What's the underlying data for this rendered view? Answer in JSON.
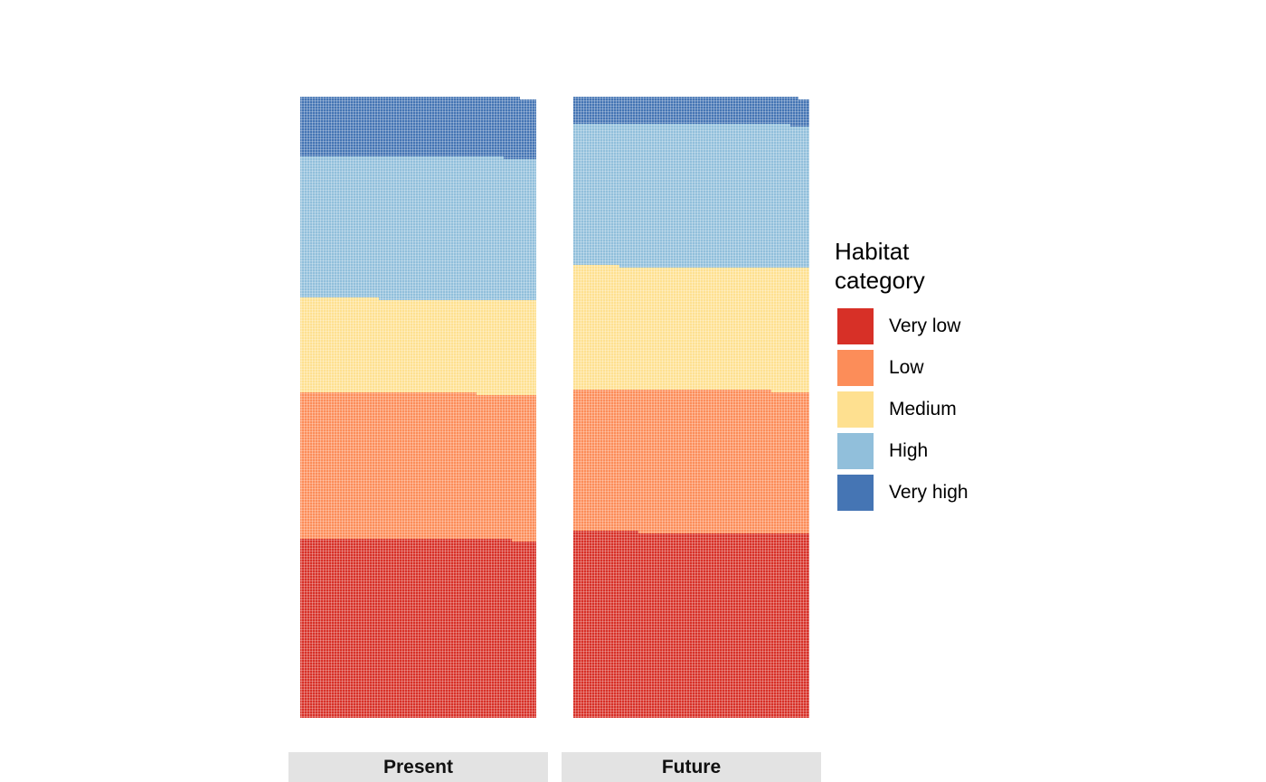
{
  "chart_data": {
    "type": "waffle",
    "grid": {
      "columns": 87,
      "rows": 252,
      "unit": "cells"
    },
    "facets": [
      {
        "name": "Present",
        "counts": {
          "Very low": 5733,
          "Low": 4685,
          "Medium": 3009,
          "High": 4570,
          "Very high": 1920
        }
      },
      {
        "name": "Future",
        "counts": {
          "Very low": 5940,
          "Low": 4573,
          "Medium": 3946,
          "High": 4587,
          "Very high": 873
        }
      }
    ],
    "categories": [
      "Very low",
      "Low",
      "Medium",
      "High",
      "Very high"
    ],
    "colors": {
      "Very low": "#d73027",
      "Low": "#fc8d59",
      "Medium": "#fee090",
      "High": "#91bfdb",
      "Very high": "#4575b4"
    },
    "legend": {
      "title_line1": "Habitat",
      "title_line2": "category",
      "position": "right"
    },
    "strip_background": "#e3e3e3",
    "cell_border_color": "#ffffff"
  }
}
